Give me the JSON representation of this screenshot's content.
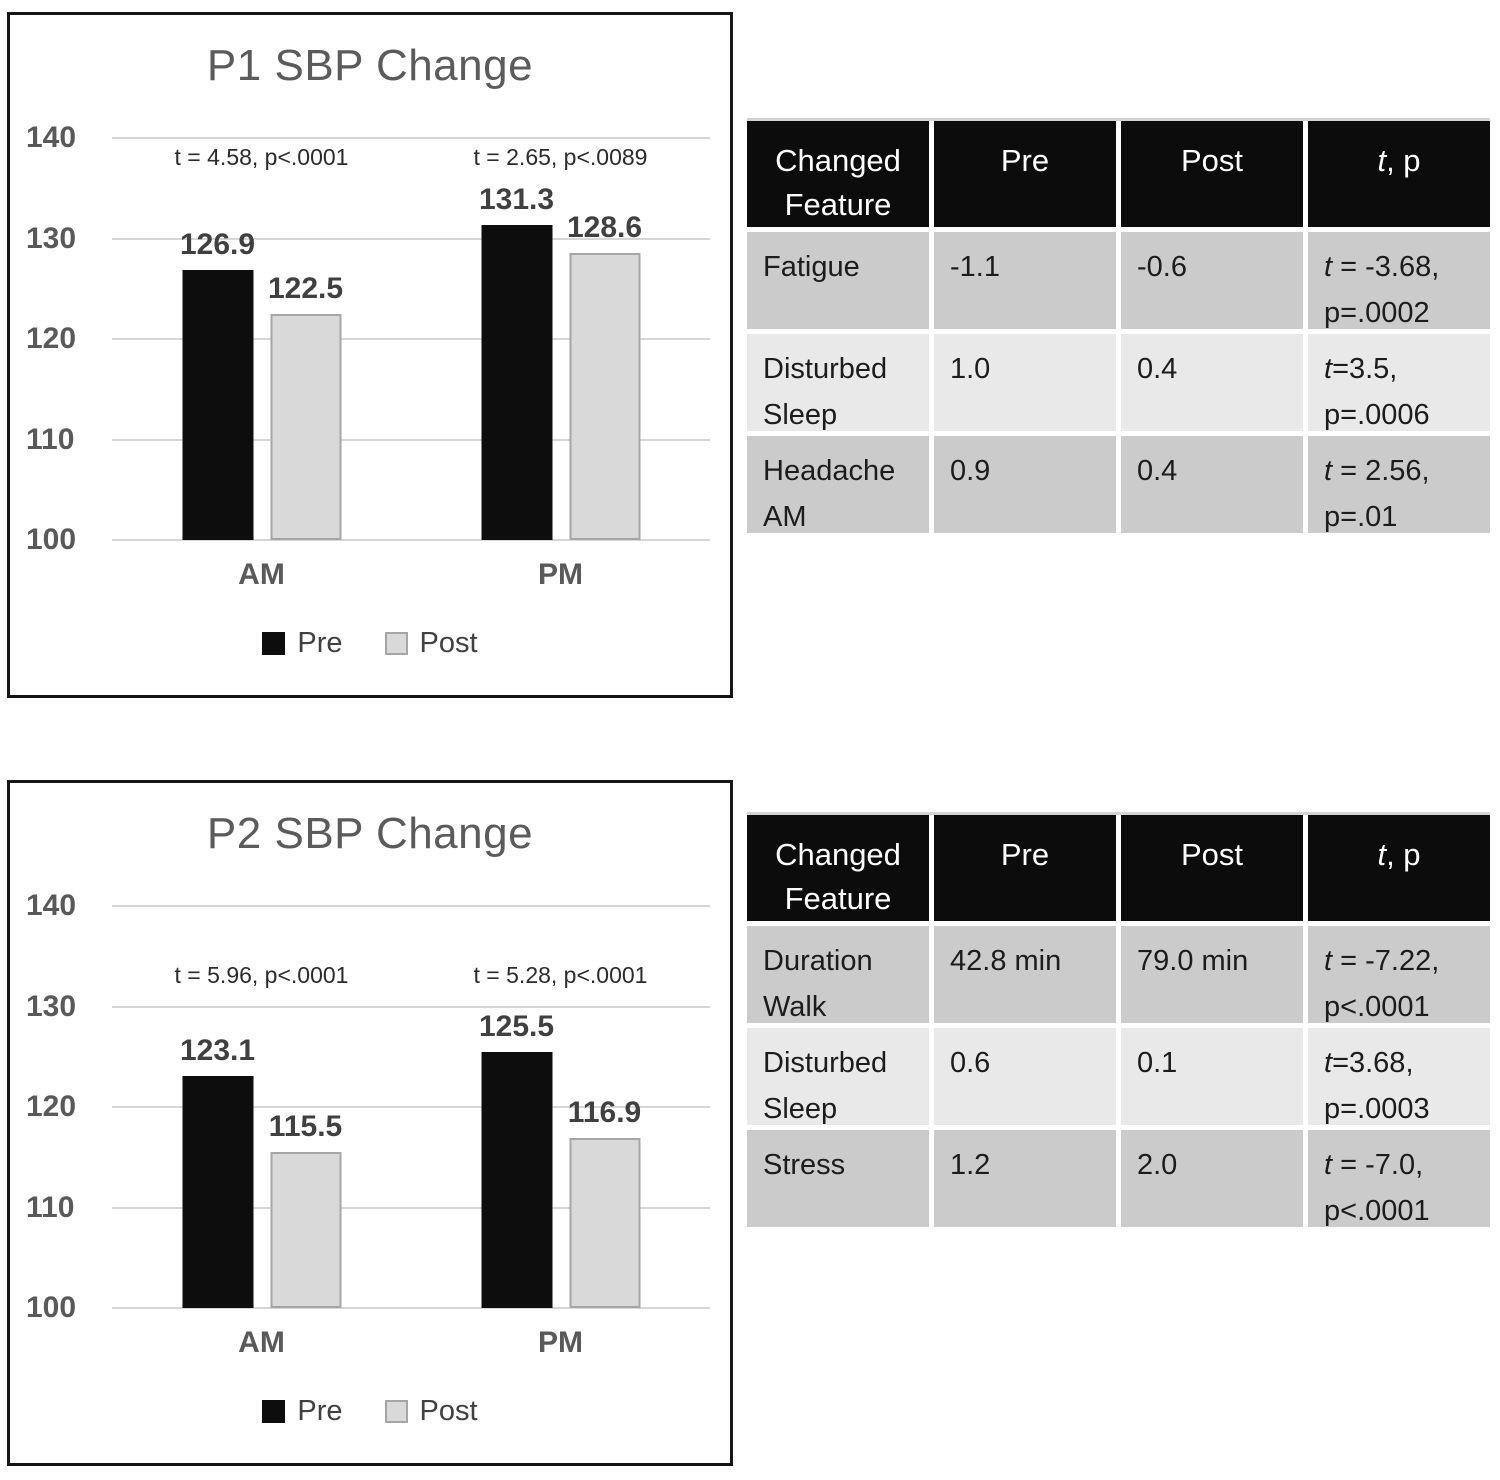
{
  "chart_data": [
    {
      "type": "bar",
      "title": "P1 SBP Change",
      "categories": [
        "AM",
        "PM"
      ],
      "series": [
        {
          "name": "Pre",
          "color": "#0d0d0d",
          "values": [
            126.9,
            131.3
          ]
        },
        {
          "name": "Post",
          "color": "#d9d9d9",
          "border_color": "#a6a6a6",
          "values": [
            122.5,
            128.6
          ]
        }
      ],
      "annotations": [
        "t = 4.58, p<.0001",
        "t = 2.65, p<.0089"
      ],
      "y_ticks": [
        140,
        130,
        120,
        110,
        100
      ],
      "ylim": [
        100,
        140
      ],
      "grid": true,
      "legend_position": "bottom",
      "annotation_top_pct": 1.5
    },
    {
      "type": "bar",
      "title": "P2 SBP Change",
      "categories": [
        "AM",
        "PM"
      ],
      "series": [
        {
          "name": "Pre",
          "color": "#0d0d0d",
          "values": [
            123.1,
            125.5
          ]
        },
        {
          "name": "Post",
          "color": "#d9d9d9",
          "border_color": "#a6a6a6",
          "values": [
            115.5,
            116.9
          ]
        }
      ],
      "annotations": [
        "t = 5.96, p<.0001",
        "t = 5.28, p<.0001"
      ],
      "y_ticks": [
        140,
        130,
        120,
        110,
        100
      ],
      "ylim": [
        100,
        140
      ],
      "grid": true,
      "legend_position": "bottom",
      "annotation_top_pct": 14
    },
    {
      "type": "table",
      "header": {
        "feature": "Changed Feature",
        "pre": "Pre",
        "post": "Post",
        "stat_t": "t",
        "stat_rest": ", p"
      },
      "rows": [
        {
          "feature": "Fatigue",
          "pre": "-1.1",
          "post": "-0.6",
          "stat_t": "t",
          "stat_rest": " = -3.68, p=.0002"
        },
        {
          "feature": "Disturbed Sleep",
          "pre": "1.0",
          "post": "0.4",
          "stat_t": "t",
          "stat_rest": "=3.5, p=.0006"
        },
        {
          "feature": "Headache AM",
          "pre": "0.9",
          "post": "0.4",
          "stat_t": "t",
          "stat_rest": " = 2.56, p=.01"
        }
      ]
    },
    {
      "type": "table",
      "header": {
        "feature": "Changed Feature",
        "pre": "Pre",
        "post": "Post",
        "stat_t": "t",
        "stat_rest": ", p"
      },
      "rows": [
        {
          "feature": "Duration Walk",
          "pre": "42.8 min",
          "post": "79.0 min",
          "stat_t": "t",
          "stat_rest": " = -7.22, p<.0001"
        },
        {
          "feature": "Disturbed Sleep",
          "pre": "0.6",
          "post": "0.1",
          "stat_t": "t",
          "stat_rest": "=3.68, p=.0003"
        },
        {
          "feature": "Stress",
          "pre": "1.2",
          "post": "2.0",
          "stat_t": "t",
          "stat_rest": " = -7.0, p<.0001"
        }
      ]
    }
  ],
  "colors": {
    "pre_bar": "#0d0d0d",
    "post_bar_fill": "#d9d9d9",
    "post_bar_border": "#a6a6a6",
    "gridline": "#d6d6d6",
    "chart_text": "#595959",
    "table_header_bg": "#0c0c0c",
    "row_dark": "#cbcbcb",
    "row_light": "#e9e9e9"
  }
}
